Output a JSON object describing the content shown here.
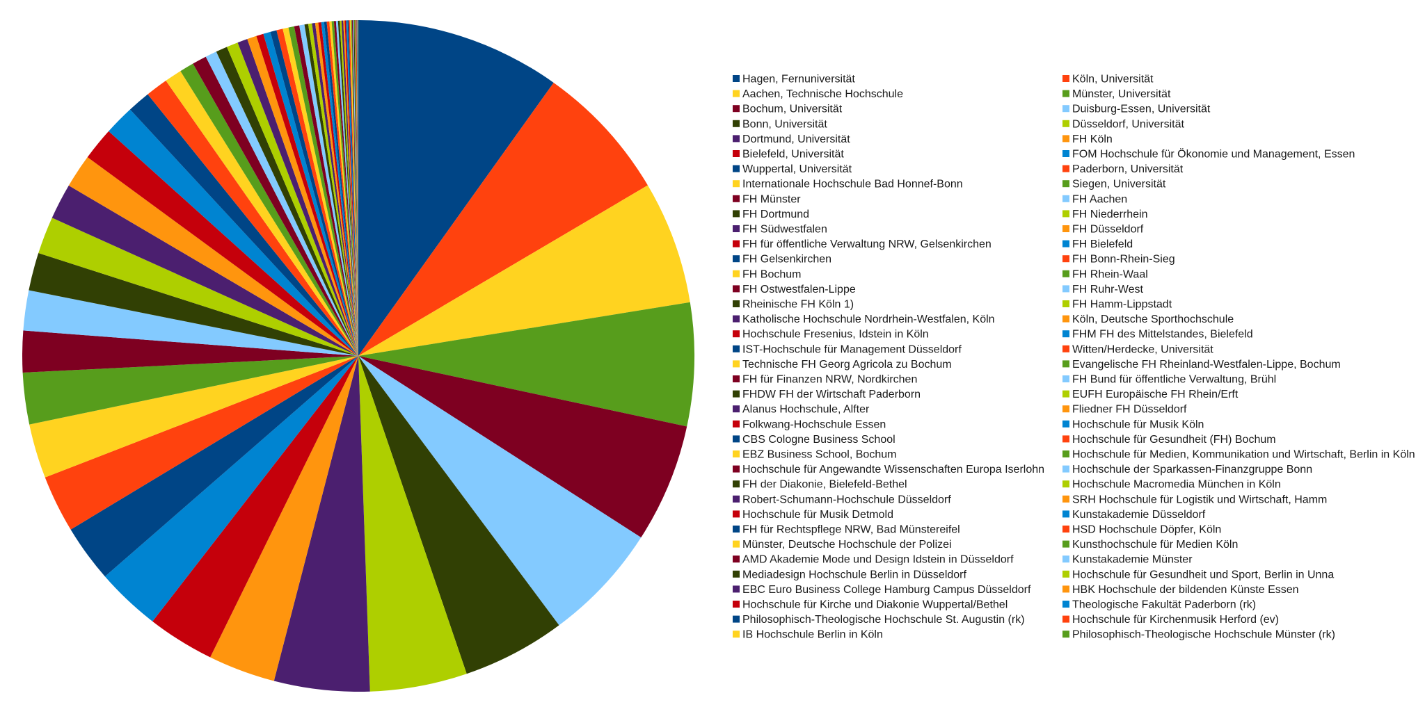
{
  "chart_data": {
    "type": "pie",
    "title": "",
    "legend_position": "right",
    "start_angle_deg": 0,
    "direction": "clockwise",
    "palette": [
      "#004586",
      "#ff420e",
      "#ffd320",
      "#579d1c",
      "#7e0021",
      "#83caff",
      "#314004",
      "#aecf00",
      "#4b1f6f",
      "#ff950e",
      "#c5000b",
      "#0084d1"
    ],
    "slices": [
      {
        "label": "Hagen, Fernuniversität",
        "value": 71.6
      },
      {
        "label": "Köln, Universität",
        "value": 48.2
      },
      {
        "label": "Aachen, Technische Hochschule",
        "value": 43.0
      },
      {
        "label": "Münster, Universität",
        "value": 43.0
      },
      {
        "label": "Bochum, Universität",
        "value": 41.5
      },
      {
        "label": "Duisburg-Essen, Universität",
        "value": 41.5
      },
      {
        "label": "Bonn, Universität",
        "value": 36.0
      },
      {
        "label": "Düsseldorf, Universität",
        "value": 33.9
      },
      {
        "label": "Dortmund, Universität",
        "value": 33.3
      },
      {
        "label": "FH Köln",
        "value": 23.4
      },
      {
        "label": "Bielefeld, Universität",
        "value": 23.4
      },
      {
        "label": "FOM Hochschule für Ökonomie und Management, Essen",
        "value": 22.5
      },
      {
        "label": "Wuppertal, Universität",
        "value": 20.0
      },
      {
        "label": "Paderborn, Universität",
        "value": 20.0
      },
      {
        "label": "Internationale Hochschule Bad Honnef-Bonn",
        "value": 19.0
      },
      {
        "label": "Siegen, Universität",
        "value": 18.0
      },
      {
        "label": "FH Münster",
        "value": 14.5
      },
      {
        "label": "FH Aachen",
        "value": 14.0
      },
      {
        "label": "FH Dortmund",
        "value": 13.2
      },
      {
        "label": "FH Niederrhein",
        "value": 13.0
      },
      {
        "label": "FH Südwestfalen",
        "value": 12.5
      },
      {
        "label": "FH Düsseldorf",
        "value": 11.7
      },
      {
        "label": "FH für öffentliche Verwaltung NRW, Gelsenkirchen",
        "value": 11.5
      },
      {
        "label": "FH Bielefeld",
        "value": 10.5
      },
      {
        "label": "FH Gelsenkirchen",
        "value": 8.0
      },
      {
        "label": "FH Bonn-Rhein-Sieg",
        "value": 7.8
      },
      {
        "label": "FH Bochum",
        "value": 6.0
      },
      {
        "label": "FH Rhein-Waal",
        "value": 5.0
      },
      {
        "label": "FH Ostwestfalen-Lippe",
        "value": 5.0
      },
      {
        "label": "FH Ruhr-West",
        "value": 4.0
      },
      {
        "label": "Rheinische FH Köln 1)",
        "value": 4.0
      },
      {
        "label": "FH Hamm-Lippstadt",
        "value": 4.0
      },
      {
        "label": "Katholische Hochschule Nordrhein-Westfalen, Köln",
        "value": 3.5
      },
      {
        "label": "Köln, Deutsche Sporthochschule",
        "value": 3.3
      },
      {
        "label": "Hochschule Fresenius, Idstein in Köln",
        "value": 2.5
      },
      {
        "label": "FHM FH des Mittelstandes, Bielefeld",
        "value": 2.5
      },
      {
        "label": "IST-Hochschule für Management Düsseldorf",
        "value": 2.2
      },
      {
        "label": "Witten/Herdecke, Universität",
        "value": 2.2
      },
      {
        "label": "Technische FH Georg Agricola zu Bochum",
        "value": 2.0
      },
      {
        "label": "Evangelische FH Rheinland-Westfalen-Lippe, Bochum",
        "value": 2.0
      },
      {
        "label": "FH für Finanzen NRW, Nordkirchen",
        "value": 1.8
      },
      {
        "label": "FH Bund für öffentliche Verwaltung, Brühl",
        "value": 1.8
      },
      {
        "label": "FHDW FH der Wirtschaft Paderborn",
        "value": 1.3
      },
      {
        "label": "EUFH Europäische FH Rhein/Erft",
        "value": 1.3
      },
      {
        "label": "Alanus Hochschule, Alfter",
        "value": 1.1
      },
      {
        "label": "Fliedner FH Düsseldorf",
        "value": 1.1
      },
      {
        "label": "Folkwang-Hochschule Essen",
        "value": 1.0
      },
      {
        "label": "Hochschule für Musik Köln",
        "value": 1.0
      },
      {
        "label": "CBS Cologne Business School",
        "value": 0.9
      },
      {
        "label": "Hochschule für Gesundheit (FH) Bochum",
        "value": 0.9
      },
      {
        "label": "EBZ Business School, Bochum",
        "value": 0.8
      },
      {
        "label": "Hochschule für Medien, Kommunikation und Wirtschaft, Berlin in Köln",
        "value": 0.8
      },
      {
        "label": "Hochschule für Angewandte Wissenschaften Europa Iserlohn",
        "value": 0.7
      },
      {
        "label": "Hochschule der Sparkassen-Finanzgruppe Bonn",
        "value": 0.7
      },
      {
        "label": "FH der Diakonie, Bielefeld-Bethel",
        "value": 0.6
      },
      {
        "label": "Hochschule Macromedia München in Köln",
        "value": 0.6
      },
      {
        "label": "Robert-Schumann-Hochschule Düsseldorf",
        "value": 0.6
      },
      {
        "label": "SRH Hochschule für Logistik und Wirtschaft, Hamm",
        "value": 0.5
      },
      {
        "label": "Hochschule für Musik Detmold",
        "value": 0.5
      },
      {
        "label": "Kunstakademie Düsseldorf",
        "value": 0.5
      },
      {
        "label": "FH für Rechtspflege NRW, Bad Münstereifel",
        "value": 0.4
      },
      {
        "label": "HSD Hochschule Döpfer, Köln",
        "value": 0.4
      },
      {
        "label": "Münster, Deutsche Hochschule der Polizei",
        "value": 0.4
      },
      {
        "label": "Kunsthochschule für Medien Köln",
        "value": 0.3
      },
      {
        "label": "AMD Akademie Mode und Design Idstein in Düsseldorf",
        "value": 0.3
      },
      {
        "label": "Kunstakademie Münster",
        "value": 0.3
      },
      {
        "label": "Mediadesign Hochschule Berlin in Düsseldorf",
        "value": 0.3
      },
      {
        "label": "Hochschule für Gesundheit und Sport, Berlin in Unna",
        "value": 0.2
      },
      {
        "label": "EBC Euro Business College Hamburg Campus Düsseldorf",
        "value": 0.2
      },
      {
        "label": "HBK Hochschule der bildenden Künste Essen",
        "value": 0.2
      },
      {
        "label": "Hochschule für Kirche und Diakonie Wuppertal/Bethel",
        "value": 0.15
      },
      {
        "label": "Theologische Fakultät Paderborn (rk)",
        "value": 0.15
      },
      {
        "label": "Philosophisch-Theologische Hochschule St. Augustin (rk)",
        "value": 0.1
      },
      {
        "label": "Hochschule für Kirchenmusik Herford (ev)",
        "value": 0.1
      },
      {
        "label": "IB Hochschule Berlin in Köln",
        "value": 0.1
      },
      {
        "label": "Philosophisch-Theologische Hochschule Münster (rk)",
        "value": 0.1
      }
    ]
  }
}
